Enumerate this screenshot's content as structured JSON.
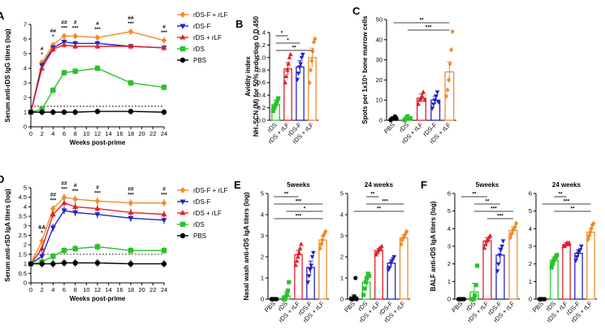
{
  "colors": {
    "rDS-F + rLF": "#f08c2a",
    "rDS-F": "#2323c8",
    "rDS + rLF": "#e0202a",
    "rDS": "#2cc02c",
    "PBS": "#000000"
  },
  "marker_symbols": {
    "rDS-F + rLF": "diamond",
    "rDS-F": "triangle-down",
    "rDS + rLF": "triangle-up",
    "rDS": "square",
    "PBS": "circle"
  },
  "chart_data": [
    {
      "id": "A",
      "type": "line",
      "letter": "A",
      "ylabel": "Serum anti-rDS IgG titers (log)",
      "xlabel": "Weeks post-prime",
      "x": [
        0,
        2,
        4,
        6,
        8,
        12,
        18,
        24
      ],
      "xticks": [
        "0",
        "2",
        "4",
        "6",
        "8",
        "10",
        "12",
        "14",
        "16",
        "18",
        "20",
        "22",
        "24"
      ],
      "yticks": [
        "0",
        "1",
        "2",
        "3",
        "4",
        "5",
        "6",
        "7"
      ],
      "ylim": [
        0,
        7
      ],
      "xlim": [
        0,
        24
      ],
      "dashed_line": 1.4,
      "legend": [
        "rDS-F + rLF",
        "rDS-F",
        "rDS + rLF",
        "rDS",
        "PBS"
      ],
      "series": [
        {
          "name": "rDS-F + rLF",
          "values": [
            1,
            4.4,
            5.6,
            6.2,
            6.2,
            6.1,
            6.5,
            5.9
          ]
        },
        {
          "name": "rDS-F",
          "values": [
            1,
            4.2,
            5.4,
            5.8,
            5.7,
            5.7,
            5.5,
            5.4
          ]
        },
        {
          "name": "rDS + rLF",
          "values": [
            1,
            4.0,
            5.3,
            5.6,
            5.5,
            5.5,
            5.5,
            5.4
          ]
        },
        {
          "name": "rDS",
          "values": [
            1,
            1.2,
            2.5,
            3.7,
            3.8,
            4.0,
            3.0,
            2.7
          ]
        },
        {
          "name": "PBS",
          "values": [
            1,
            1,
            1,
            1,
            1,
            1.05,
            1.05,
            1
          ]
        }
      ],
      "annotations": [
        {
          "x": 2,
          "lines": [
            "#",
            "*"
          ],
          "colors": [
            "#2323c8",
            "#2323c8"
          ]
        },
        {
          "x": 4,
          "lines": [
            "##",
            "*"
          ],
          "colors": [
            "#f08c2a",
            "#f08c2a"
          ]
        },
        {
          "x": 6,
          "lines": [
            "##",
            "***"
          ],
          "colors": [
            "#f08c2a",
            "#f08c2a"
          ]
        },
        {
          "x": 8,
          "lines": [
            "#",
            "***"
          ],
          "colors": [
            "#f08c2a",
            "#f08c2a"
          ]
        },
        {
          "x": 12,
          "lines": [
            "#",
            "***"
          ],
          "colors": [
            "#f08c2a",
            "#f08c2a"
          ]
        },
        {
          "x": 18,
          "lines": [
            "##",
            "***"
          ],
          "colors": [
            "#f08c2a",
            "#f08c2a"
          ]
        },
        {
          "x": 24,
          "lines": [
            "#",
            "***"
          ],
          "colors": [
            "#f08c2a",
            "#f08c2a"
          ]
        }
      ]
    },
    {
      "id": "B",
      "type": "bar",
      "letter": "B",
      "ylabel": "Avidity index",
      "ylabel2": "NH₄SCN (M) for 50% reduction O.D.450",
      "categories": [
        "rDS",
        "rDS + rLF",
        "rDS-F",
        "rDS + rLF"
      ],
      "category_labels": [
        "rDS",
        "rDS + rLF",
        "rDS-F",
        "rDS + rLF"
      ],
      "series_colors": [
        "#2cc02c",
        "#e0202a",
        "#2323c8",
        "#f08c2a"
      ],
      "series_names": [
        "rDS",
        "rDS + rLF",
        "rDS-F",
        "rDS-F + rLF"
      ],
      "values": [
        0.25,
        0.82,
        0.85,
        1.0
      ],
      "errors": [
        0.07,
        0.1,
        0.1,
        0.15
      ],
      "points": [
        [
          0.15,
          0.2,
          0.25,
          0.3,
          0.35
        ],
        [
          0.6,
          0.7,
          0.8,
          0.9,
          1.0,
          1.05
        ],
        [
          0.65,
          0.75,
          0.85,
          0.9,
          1.0,
          1.05
        ],
        [
          0.6,
          0.8,
          0.95,
          1.1,
          1.25,
          1.3
        ]
      ],
      "yticks": [
        "0.0",
        "0.2",
        "0.4",
        "0.6",
        "0.8",
        "1.0",
        "1.2",
        "1.4"
      ],
      "ylim": [
        0,
        1.4
      ],
      "sig": [
        {
          "from": 0,
          "to": 1,
          "label": "*"
        },
        {
          "from": 0,
          "to": 2,
          "label": "*"
        },
        {
          "from": 0,
          "to": 3,
          "label": "**"
        }
      ]
    },
    {
      "id": "C",
      "type": "bar",
      "letter": "C",
      "ylabel": "Spots per 1x10⁵ bone marrow cells",
      "categories": [
        "PBS",
        "rDS",
        "rDS + rLF",
        "rDS-F",
        "rDS + rLF"
      ],
      "category_labels": [
        "PBS",
        "rDS",
        "rDS + rLF",
        "rDS-F",
        "rDS + rLF"
      ],
      "series_colors": [
        "#000000",
        "#2cc02c",
        "#e0202a",
        "#2323c8",
        "#f08c2a"
      ],
      "series_names": [
        "PBS",
        "rDS",
        "rDS + rLF",
        "rDS-F",
        "rDS-F + rLF"
      ],
      "values": [
        1,
        1,
        11,
        10,
        24
      ],
      "errors": [
        0.5,
        0.5,
        2,
        2,
        5
      ],
      "points": [
        [
          0,
          1,
          1,
          2,
          1
        ],
        [
          0,
          1,
          2,
          1,
          1
        ],
        [
          8,
          10,
          11,
          12,
          14,
          10
        ],
        [
          6,
          8,
          10,
          12,
          14,
          9
        ],
        [
          12,
          15,
          20,
          28,
          35,
          44
        ]
      ],
      "yticks": [
        "0",
        "10",
        "20",
        "30",
        "40",
        "50"
      ],
      "ylim": [
        0,
        50
      ],
      "sig": [
        {
          "from": 0,
          "to": 4,
          "label": "**"
        },
        {
          "from": 1,
          "to": 4,
          "label": "***"
        }
      ]
    },
    {
      "id": "D",
      "type": "line",
      "letter": "D",
      "ylabel": "Serum anti-rSD IgA titers (log)",
      "xlabel": "Weeks post-prime",
      "x": [
        0,
        2,
        4,
        6,
        8,
        12,
        18,
        24
      ],
      "xticks": [
        "0",
        "2",
        "4",
        "6",
        "8",
        "10",
        "12",
        "14",
        "16",
        "18",
        "20",
        "22",
        "24"
      ],
      "yticks": [
        "0",
        "0.5",
        "1",
        "1.5",
        "2",
        "2.5",
        "3",
        "3.5",
        "4",
        "4.5",
        "5"
      ],
      "ylim": [
        0,
        5
      ],
      "xlim": [
        0,
        24
      ],
      "dashed_line": 1.5,
      "legend": [
        "rDS-F + rLF",
        "rDS-F",
        "rDS + rLF",
        "rDS",
        "PBS"
      ],
      "series": [
        {
          "name": "rDS-F + rLF",
          "values": [
            1,
            2.2,
            3.9,
            4.5,
            4.4,
            4.3,
            4.2,
            4.2
          ]
        },
        {
          "name": "rDS-F",
          "values": [
            1,
            1.4,
            2.9,
            3.8,
            3.7,
            3.6,
            3.4,
            3.3
          ]
        },
        {
          "name": "rDS + rLF",
          "values": [
            1,
            1.8,
            3.6,
            4.2,
            4.0,
            3.9,
            3.7,
            3.6
          ]
        },
        {
          "name": "rDS",
          "values": [
            1,
            1.1,
            1.4,
            1.7,
            1.8,
            1.9,
            1.7,
            1.7
          ]
        },
        {
          "name": "PBS",
          "values": [
            1,
            1,
            1,
            1.05,
            1.05,
            1.05,
            1,
            1
          ]
        }
      ],
      "annotations": [
        {
          "x": 2,
          "lines": [
            "&&",
            "*"
          ],
          "colors": [
            "#e0202a",
            "#e0202a"
          ]
        },
        {
          "x": 4,
          "lines": [
            "##",
            "***"
          ],
          "colors": [
            "#f08c2a",
            "#f08c2a"
          ]
        },
        {
          "x": 6,
          "lines": [
            "##",
            "***"
          ],
          "colors": [
            "#f08c2a",
            "#f08c2a"
          ]
        },
        {
          "x": 8,
          "lines": [
            "#",
            "***"
          ],
          "colors": [
            "#f08c2a",
            "#f08c2a"
          ]
        },
        {
          "x": 12,
          "lines": [
            "#",
            "***"
          ],
          "colors": [
            "#f08c2a",
            "#f08c2a"
          ]
        },
        {
          "x": 18,
          "lines": [
            "##",
            "***"
          ],
          "colors": [
            "#f08c2a",
            "#f08c2a"
          ]
        },
        {
          "x": 24,
          "lines": [
            "#",
            "***"
          ],
          "colors": [
            "#f08c2a",
            "#f08c2a"
          ]
        }
      ]
    },
    {
      "id": "E1",
      "type": "bar",
      "letter": "E",
      "subtitle": "5weeks",
      "ylabel": "Nasal wash anti-rDS IgA titers (log)",
      "categories": [
        "PBS",
        "rDS",
        "rDS + rLF",
        "rDS-F",
        "rDS + rLF"
      ],
      "category_labels": [
        "PBS",
        "rDS",
        "rDS + rLF",
        "rDS-F",
        "rDS + rLF"
      ],
      "series_colors": [
        "#000000",
        "#2cc02c",
        "#e0202a",
        "#2323c8",
        "#f08c2a"
      ],
      "series_names": [
        "PBS",
        "rDS",
        "rDS + rLF",
        "rDS-F",
        "rDS-F + rLF"
      ],
      "values": [
        0,
        0.15,
        2.1,
        1.5,
        2.8
      ],
      "errors": [
        0,
        0.2,
        0.2,
        0.3,
        0.2
      ],
      "points": [
        [
          0,
          0,
          0,
          0,
          0,
          0
        ],
        [
          0,
          0,
          0.1,
          0.2,
          0.4,
          0.8
        ],
        [
          1.6,
          1.8,
          2.0,
          2.2,
          2.4,
          2.6
        ],
        [
          0.8,
          1.1,
          1.4,
          1.6,
          2.0,
          2.2
        ],
        [
          2.4,
          2.6,
          2.8,
          3.0,
          3.1,
          3.2
        ]
      ],
      "yticks": [
        "0",
        "1",
        "2",
        "3",
        "4",
        "5"
      ],
      "ylim": [
        0,
        5
      ],
      "sig": [
        {
          "from": 0,
          "to": 2,
          "label": "**"
        },
        {
          "from": 0,
          "to": 4,
          "label": "***"
        },
        {
          "from": 1,
          "to": 4,
          "label": "*"
        },
        {
          "from": 0,
          "to": 4,
          "label": "***"
        }
      ]
    },
    {
      "id": "E2",
      "type": "bar",
      "subtitle": "24 weeks",
      "categories": [
        "PBS",
        "rDS",
        "rDS + rLF",
        "rDS-F",
        "rDS + rLF"
      ],
      "category_labels": [
        "PBS",
        "rDS",
        "rDS + rLF",
        "rDS-F",
        "rDS + rLF"
      ],
      "series_colors": [
        "#000000",
        "#2cc02c",
        "#e0202a",
        "#2323c8",
        "#f08c2a"
      ],
      "series_names": [
        "PBS",
        "rDS",
        "rDS + rLF",
        "rDS-F",
        "rDS-F + rLF"
      ],
      "values": [
        0.1,
        0.8,
        2.3,
        1.7,
        2.9
      ],
      "errors": [
        0.1,
        0.2,
        0.1,
        0.15,
        0.15
      ],
      "points": [
        [
          0,
          0,
          0,
          0.1,
          1.0,
          0
        ],
        [
          0.2,
          0.5,
          0.8,
          1.0,
          1.2,
          1.1
        ],
        [
          2.1,
          2.2,
          2.3,
          2.4,
          2.4,
          2.5
        ],
        [
          1.4,
          1.5,
          1.7,
          1.8,
          1.9,
          2.0
        ],
        [
          2.6,
          2.8,
          2.9,
          3.0,
          3.1,
          3.2
        ]
      ],
      "yticks": [
        "0",
        "1",
        "2",
        "3",
        "4",
        "5"
      ],
      "ylim": [
        0,
        5
      ],
      "sig": [
        {
          "from": 1,
          "to": 2,
          "label": "**"
        },
        {
          "from": 1,
          "to": 4,
          "label": "***"
        },
        {
          "from": 0,
          "to": 4,
          "label": "**"
        }
      ]
    },
    {
      "id": "F1",
      "type": "bar",
      "letter": "F",
      "subtitle": "5weeks",
      "ylabel": "BALF anti-rDS IgA titers (log)",
      "categories": [
        "PBS",
        "rDS",
        "rDS + rLF",
        "rDS-F",
        "rDS + rLF"
      ],
      "category_labels": [
        "PBS",
        "rDS",
        "rDS + rLF",
        "rDS-F",
        "rDS + rLF"
      ],
      "series_colors": [
        "#000000",
        "#2cc02c",
        "#e0202a",
        "#2323c8",
        "#f08c2a"
      ],
      "series_names": [
        "PBS",
        "rDS",
        "rDS + rLF",
        "rDS-F",
        "rDS-F + rLF"
      ],
      "values": [
        0,
        0.4,
        3.3,
        2.5,
        3.9
      ],
      "errors": [
        0,
        0.5,
        0.2,
        0.4,
        0.2
      ],
      "points": [
        [
          0,
          0,
          0,
          0,
          0,
          0
        ],
        [
          0,
          0,
          0,
          0.2,
          0.8,
          1.9
        ],
        [
          2.9,
          3.1,
          3.3,
          3.4,
          3.5,
          3.6
        ],
        [
          1.6,
          2.0,
          2.5,
          2.8,
          3.0,
          3.3
        ],
        [
          3.5,
          3.7,
          3.9,
          4.0,
          4.1,
          4.3
        ]
      ],
      "yticks": [
        "0",
        "1",
        "2",
        "3",
        "4",
        "5",
        "6"
      ],
      "ylim": [
        0,
        6
      ],
      "sig": [
        {
          "from": 0,
          "to": 2,
          "label": "**"
        },
        {
          "from": 1,
          "to": 3,
          "label": "**"
        },
        {
          "from": 1,
          "to": 4,
          "label": "***"
        },
        {
          "from": 2,
          "to": 4,
          "label": "***"
        }
      ]
    },
    {
      "id": "F2",
      "type": "bar",
      "subtitle": "24 weeks",
      "categories": [
        "PBS",
        "rDS",
        "rDS + rLF",
        "rDS-F",
        "rDS + rLF"
      ],
      "category_labels": [
        "PBS",
        "rDS",
        "rDS + rLF",
        "rDS-F",
        "rDS + rLF"
      ],
      "series_colors": [
        "#000000",
        "#2cc02c",
        "#e0202a",
        "#2323c8",
        "#f08c2a"
      ],
      "series_names": [
        "PBS",
        "rDS",
        "rDS + rLF",
        "rDS-F",
        "rDS-F + rLF"
      ],
      "values": [
        0,
        2.2,
        3.1,
        2.6,
        3.8
      ],
      "errors": [
        0,
        0.2,
        0.1,
        0.2,
        0.2
      ],
      "points": [
        [
          0,
          0,
          0,
          0,
          0,
          0
        ],
        [
          1.8,
          2.0,
          2.2,
          2.3,
          2.4,
          2.5
        ],
        [
          3.0,
          3.0,
          3.1,
          3.2,
          3.1,
          3.2
        ],
        [
          2.2,
          2.4,
          2.6,
          2.7,
          2.8,
          3.0
        ],
        [
          3.4,
          3.6,
          3.8,
          4.0,
          4.2,
          4.3
        ]
      ],
      "yticks": [
        "0",
        "1",
        "2",
        "3",
        "4",
        "5",
        "6"
      ],
      "ylim": [
        0,
        6
      ],
      "sig": [
        {
          "from": 1,
          "to": 2,
          "label": "**"
        },
        {
          "from": 0,
          "to": 4,
          "label": "***"
        },
        {
          "from": 1,
          "to": 4,
          "label": "**"
        }
      ]
    }
  ]
}
